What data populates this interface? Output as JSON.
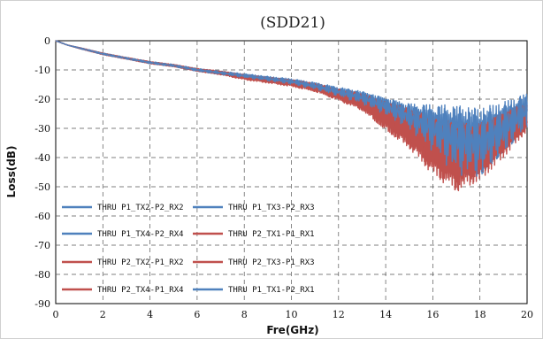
{
  "chart_data": {
    "type": "line",
    "title": "(SDD21)",
    "xlabel": "Fre(GHz)",
    "ylabel": "Loss(dB)",
    "xlim": [
      0,
      20
    ],
    "ylim": [
      -90,
      0
    ],
    "xticks": [
      "0",
      "2",
      "4",
      "6",
      "8",
      "10",
      "12",
      "14",
      "16",
      "18",
      "20"
    ],
    "yticks": [
      "0",
      "-10",
      "-20",
      "-30",
      "-40",
      "-50",
      "-60",
      "-70",
      "-80",
      "-90"
    ],
    "grid": "dashed",
    "legend_placement": "lower-left",
    "colors": {
      "blue": "#4f81bd",
      "red": "#c0504d"
    },
    "trend_x": [
      0,
      0.5,
      1,
      2,
      3,
      4,
      5,
      6,
      7,
      8,
      9,
      10,
      11,
      12,
      13,
      14,
      15,
      16,
      17,
      18,
      19,
      20
    ],
    "series": [
      {
        "name": "THRU  P1_TX2-P2_RX2",
        "color": "#4f81bd",
        "y": [
          0,
          -1.5,
          -2.5,
          -4.5,
          -6,
          -7.5,
          -8.5,
          -10,
          -11,
          -12,
          -13,
          -14,
          -15.5,
          -17.5,
          -19.5,
          -22.5,
          -26,
          -30,
          -34,
          -35,
          -30,
          -24
        ],
        "ripple": [
          0,
          0,
          0.2,
          0.3,
          0.3,
          0.4,
          0.4,
          0.5,
          0.6,
          0.7,
          0.8,
          1,
          1.2,
          1.6,
          2.2,
          3,
          4.5,
          8,
          12,
          12,
          9,
          6
        ]
      },
      {
        "name": "THRU  P1_TX3-P2_RX3",
        "color": "#4f81bd",
        "y": [
          0,
          -1.5,
          -2.5,
          -4.5,
          -6,
          -7.5,
          -8.5,
          -10,
          -11,
          -12,
          -13,
          -14,
          -15.5,
          -17.5,
          -19.5,
          -22.5,
          -26,
          -30,
          -34,
          -35,
          -30,
          -24
        ],
        "ripple": [
          0,
          0,
          0.2,
          0.3,
          0.3,
          0.4,
          0.4,
          0.5,
          0.6,
          0.7,
          0.8,
          1,
          1.2,
          1.6,
          2.2,
          3,
          4.5,
          8,
          12,
          12,
          9,
          6
        ]
      },
      {
        "name": "THRU  P1_TX4-P2_RX4",
        "color": "#4f81bd",
        "y": [
          0,
          -1.5,
          -2.5,
          -4.5,
          -6,
          -7.5,
          -8.5,
          -10,
          -11,
          -12,
          -13,
          -14,
          -15.5,
          -17.5,
          -19.5,
          -22.5,
          -26,
          -30,
          -34,
          -35,
          -30,
          -24
        ],
        "ripple": [
          0,
          0,
          0.2,
          0.3,
          0.3,
          0.4,
          0.4,
          0.5,
          0.6,
          0.7,
          0.8,
          1,
          1.2,
          1.6,
          2.2,
          3,
          4.5,
          8,
          12,
          12,
          9,
          6
        ]
      },
      {
        "name": "THRU  P2_TX1-P1_RX1",
        "color": "#c0504d",
        "y": [
          0,
          -1.5,
          -2.5,
          -4.5,
          -6,
          -7.5,
          -8.5,
          -10,
          -11,
          -12.5,
          -13.5,
          -14.5,
          -16,
          -18.5,
          -21,
          -26,
          -30,
          -36,
          -40,
          -38,
          -32,
          -26
        ],
        "ripple": [
          0,
          0,
          0.2,
          0.3,
          0.3,
          0.4,
          0.4,
          0.5,
          0.7,
          0.9,
          1,
          1.2,
          1.5,
          2,
          3,
          5,
          7,
          10,
          12,
          10,
          8,
          5
        ]
      },
      {
        "name": "THRU  P2_TX2-P1_RX2",
        "color": "#c0504d",
        "y": [
          0,
          -1.5,
          -2.5,
          -4.5,
          -6,
          -7.5,
          -8.5,
          -10,
          -11,
          -12.5,
          -13.5,
          -14.5,
          -16,
          -18.5,
          -21,
          -26,
          -30,
          -36,
          -40,
          -38,
          -32,
          -26
        ],
        "ripple": [
          0,
          0,
          0.2,
          0.3,
          0.3,
          0.4,
          0.4,
          0.5,
          0.7,
          0.9,
          1,
          1.2,
          1.5,
          2,
          3,
          5,
          7,
          10,
          12,
          10,
          8,
          5
        ]
      },
      {
        "name": "THRU  P2_TX3-P1_RX3",
        "color": "#c0504d",
        "y": [
          0,
          -1.5,
          -2.5,
          -4.5,
          -6,
          -7.5,
          -8.5,
          -10,
          -11,
          -12.5,
          -13.5,
          -14.5,
          -16,
          -18.5,
          -21,
          -26,
          -30,
          -36,
          -40,
          -38,
          -32,
          -26
        ],
        "ripple": [
          0,
          0,
          0.2,
          0.3,
          0.3,
          0.4,
          0.4,
          0.5,
          0.7,
          0.9,
          1,
          1.2,
          1.5,
          2,
          3,
          5,
          7,
          10,
          12,
          10,
          8,
          5
        ]
      },
      {
        "name": "THRU  P2_TX4-P1_RX4",
        "color": "#c0504d",
        "y": [
          0,
          -1.5,
          -2.5,
          -4.5,
          -6,
          -7.5,
          -8.5,
          -10,
          -11,
          -12.5,
          -13.5,
          -14.5,
          -16,
          -18.5,
          -21,
          -26,
          -30,
          -36,
          -40,
          -38,
          -32,
          -26
        ],
        "ripple": [
          0,
          0,
          0.2,
          0.3,
          0.3,
          0.4,
          0.4,
          0.5,
          0.7,
          0.9,
          1,
          1.2,
          1.5,
          2,
          3,
          5,
          7,
          10,
          12,
          10,
          8,
          5
        ]
      },
      {
        "name": "THRU P1_TX1-P2_RX1",
        "color": "#4f81bd",
        "y": [
          0,
          -1.5,
          -2.5,
          -4.5,
          -6,
          -7.5,
          -8.5,
          -10,
          -11,
          -12,
          -13,
          -14,
          -15.5,
          -17.5,
          -19.5,
          -22.5,
          -26,
          -30,
          -34,
          -35,
          -30,
          -24
        ],
        "ripple": [
          0,
          0,
          0.2,
          0.3,
          0.3,
          0.4,
          0.4,
          0.5,
          0.6,
          0.7,
          0.8,
          1,
          1.2,
          1.6,
          2.2,
          3,
          4.5,
          8,
          12,
          12,
          9,
          6
        ]
      }
    ]
  }
}
